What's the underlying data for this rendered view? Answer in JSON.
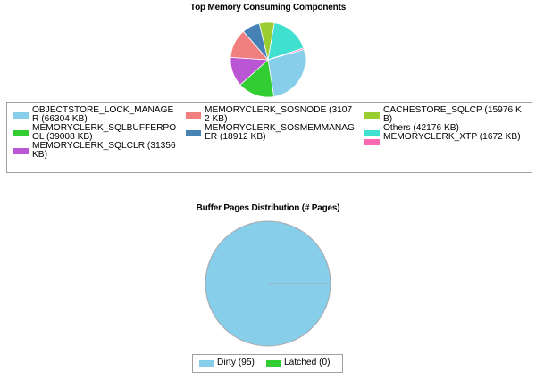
{
  "chart_data": [
    {
      "type": "pie",
      "title": "Top Memory Consuming Components",
      "slices": [
        {
          "label": "OBJECTSTORE_LOCK_MANAGER (66304 KB)",
          "value": 66304,
          "color": "#87ceeb"
        },
        {
          "label": "MEMORYCLERK_SQLBUFFERPOOL (39008 KB)",
          "value": 39008,
          "color": "#32cd32"
        },
        {
          "label": "MEMORYCLERK_SQLCLR (31356 KB)",
          "value": 31356,
          "color": "#ba55d3"
        },
        {
          "label": "MEMORYCLERK_SOSNODE (31072 KB)",
          "value": 31072,
          "color": "#f08080"
        },
        {
          "label": "MEMORYCLERK_SOSMEMMANAGER (18912 KB)",
          "value": 18912,
          "color": "#4682b4"
        },
        {
          "label": "CACHESTORE_SQLCP (15976 KB)",
          "value": 15976,
          "color": "#9acd32"
        },
        {
          "label": "Others (42176 KB)",
          "value": 42176,
          "color": "#40e0d0"
        },
        {
          "label": "MEMORYCLERK_XTP (1672 KB)",
          "value": 1672,
          "color": "#ff69b4"
        }
      ],
      "legend_placement": "bottom",
      "legend_columns": [
        [
          0,
          1,
          2
        ],
        [
          3,
          4
        ],
        [
          5,
          6,
          7
        ]
      ]
    },
    {
      "type": "pie",
      "title": "Buffer Pages Distribution (# Pages)",
      "slices": [
        {
          "label": "Dirty (95)",
          "value": 95,
          "color": "#87ceeb"
        },
        {
          "label": "Latched (0)",
          "value": 0,
          "color": "#32cd32"
        }
      ],
      "legend_placement": "bottom"
    }
  ]
}
